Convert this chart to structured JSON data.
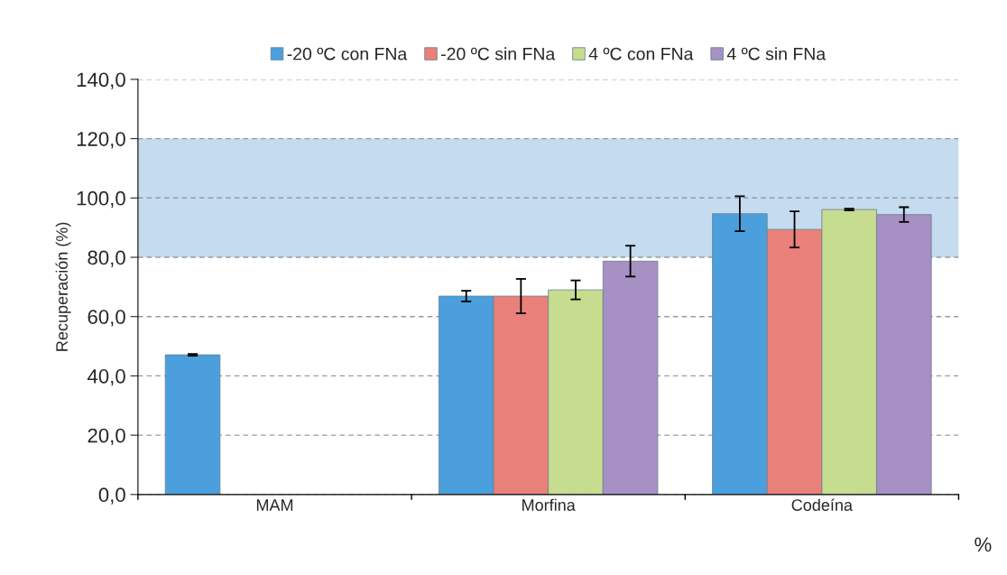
{
  "chart_data": {
    "type": "bar",
    "ylabel": "Recuperación (%)",
    "categories": [
      "MAM",
      "Morfina",
      "Codeína"
    ],
    "series": [
      {
        "name": "-20 ºC con FNa",
        "color": "#4a9fdc",
        "values": [
          47.1,
          66.9,
          94.7
        ],
        "errors": [
          0.3,
          1.8,
          5.9
        ]
      },
      {
        "name": "-20 ºC sin FNa",
        "color": "#e9807a",
        "values": [
          null,
          66.9,
          89.4
        ],
        "errors": [
          null,
          5.8,
          6.1
        ]
      },
      {
        "name": "4 ºC con FNa",
        "color": "#c6dc8e",
        "values": [
          null,
          69.0,
          96.1
        ],
        "errors": [
          null,
          3.2,
          0.3
        ]
      },
      {
        "name": "4 ºC sin FNa",
        "color": "#a690c4",
        "values": [
          null,
          78.7,
          94.4
        ],
        "errors": [
          null,
          5.2,
          2.5
        ]
      }
    ],
    "ylim": [
      0,
      140
    ],
    "yticks": [
      {
        "value": 0,
        "label": "0,0"
      },
      {
        "value": 20,
        "label": "20,0"
      },
      {
        "value": 40,
        "label": "40,0"
      },
      {
        "value": 60,
        "label": "60,0"
      },
      {
        "value": 80,
        "label": "80,0"
      },
      {
        "value": 100,
        "label": "100,0"
      },
      {
        "value": 120,
        "label": "120,0"
      },
      {
        "value": 140,
        "label": "140,0"
      }
    ],
    "bands": [
      {
        "axis": "y",
        "from": 80,
        "to": 120,
        "color": "#c5dcf0"
      }
    ],
    "grid": "y",
    "legend": "top",
    "annotations": [
      "%"
    ]
  }
}
